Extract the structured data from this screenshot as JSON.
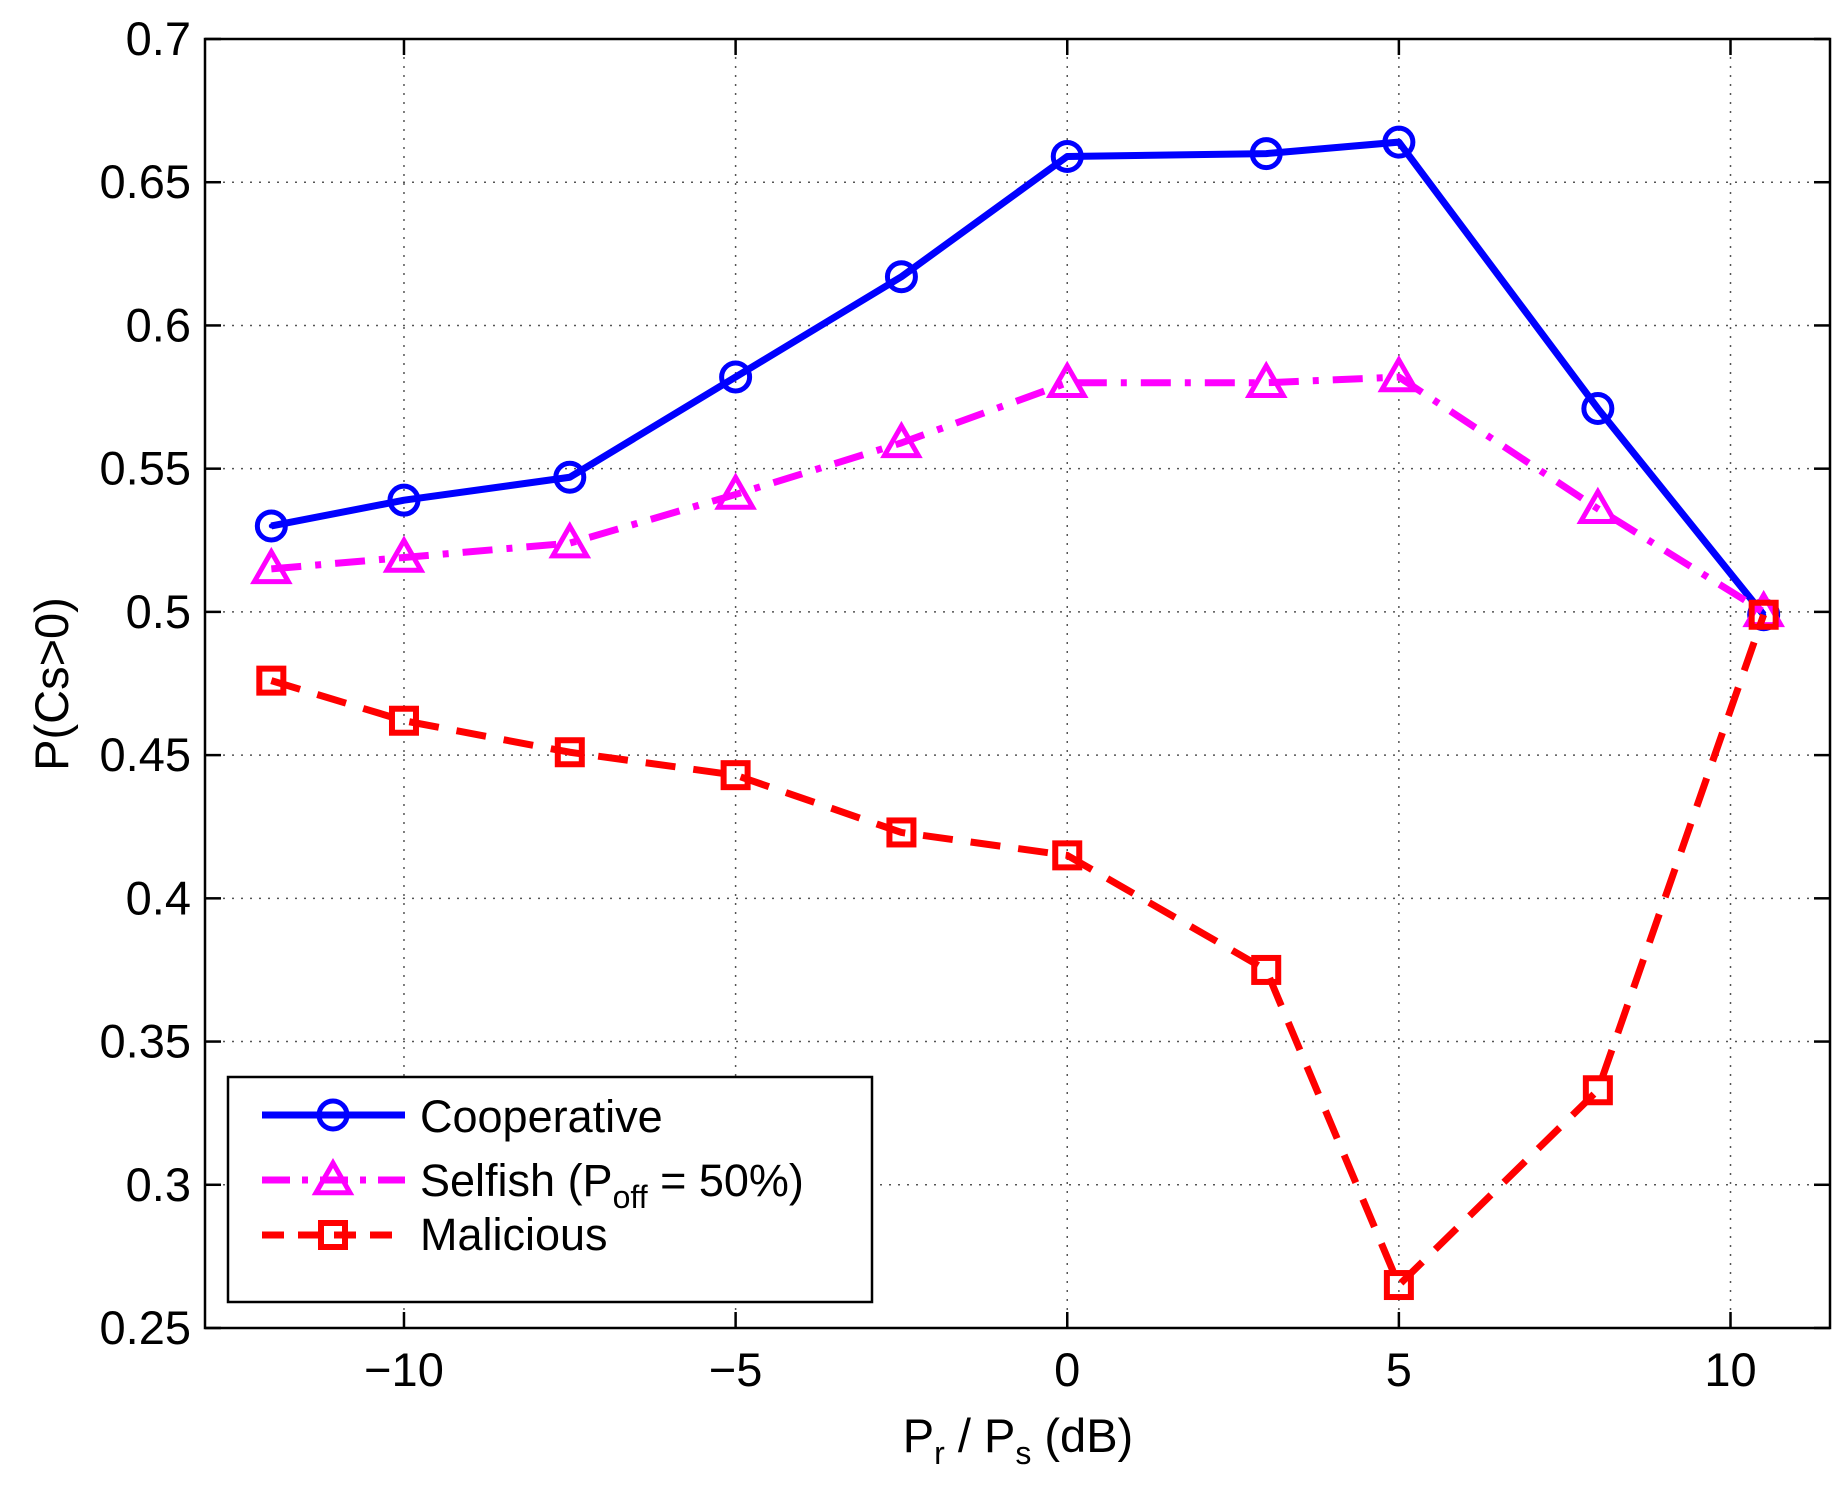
{
  "chart_data": {
    "type": "line",
    "xlabel": {
      "main1": "P",
      "sub1": "r",
      "mid": " / P",
      "sub2": "s",
      "tail": " (dB)"
    },
    "ylabel": "P(Cs>0)",
    "xlim": [
      -13,
      11.5
    ],
    "ylim": [
      0.25,
      0.7
    ],
    "xticks": [
      -10,
      -5,
      0,
      5,
      10
    ],
    "xtick_labels": [
      "−10",
      "−5",
      "0",
      "5",
      "10"
    ],
    "yticks": [
      0.25,
      0.3,
      0.35,
      0.4,
      0.45,
      0.5,
      0.55,
      0.6,
      0.65,
      0.7
    ],
    "ytick_labels": [
      "0.25",
      "0.3",
      "0.35",
      "0.4",
      "0.45",
      "0.5",
      "0.55",
      "0.6",
      "0.65",
      "0.7"
    ],
    "grid": true,
    "legend_position": "bottom-left",
    "x": [
      -12,
      -10,
      -7.5,
      -5,
      -2.5,
      0,
      3,
      5,
      8,
      10.5
    ],
    "series": [
      {
        "name": "Cooperative",
        "legend": {
          "text": "Cooperative"
        },
        "color": "#0000ff",
        "marker": "circle",
        "style": "solid",
        "values": [
          0.53,
          0.539,
          0.547,
          0.582,
          0.617,
          0.659,
          0.66,
          0.664,
          0.571,
          0.499
        ]
      },
      {
        "name": "Selfish (Poff = 50%)",
        "legend": {
          "text": "Selfish (P",
          "sub": "off",
          "tail": " = 50%)"
        },
        "color": "#ff00ff",
        "marker": "triangle",
        "style": "dashdot",
        "values": [
          0.515,
          0.519,
          0.524,
          0.541,
          0.559,
          0.58,
          0.58,
          0.582,
          0.536,
          0.5
        ]
      },
      {
        "name": "Malicious",
        "legend": {
          "text": "Malicious"
        },
        "color": "#ff0000",
        "marker": "square",
        "style": "dashed",
        "values": [
          0.476,
          0.462,
          0.451,
          0.443,
          0.423,
          0.415,
          0.375,
          0.265,
          0.333,
          0.499
        ]
      }
    ]
  }
}
